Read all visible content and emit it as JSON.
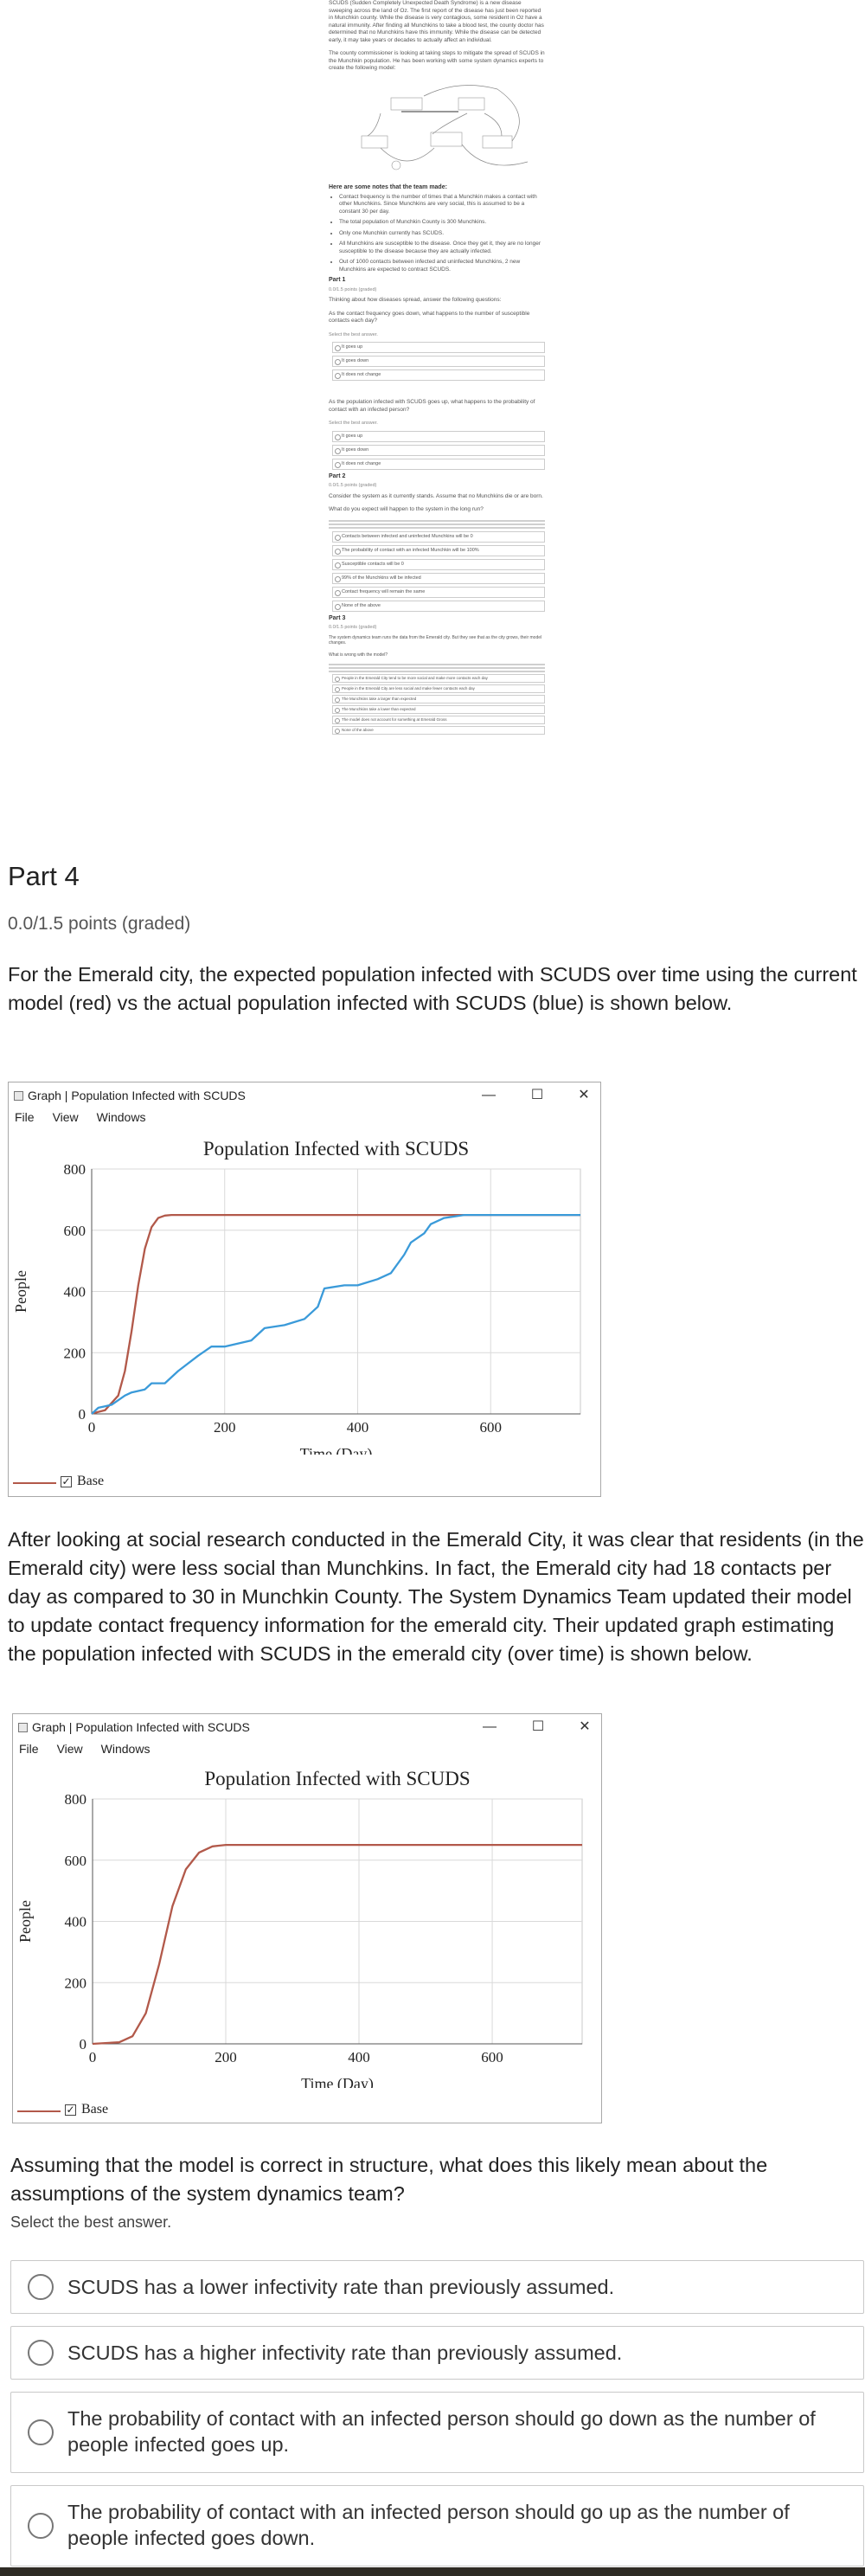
{
  "thumbnail": {
    "intro": "SCUDS (Sudden Completely Unexpected Death Syndrome) is a new disease sweeping across the land of Oz. The first report of the disease has just been reported in Munchkin county. While the disease is very contagious, some resident in Oz have a natural immunity. After finding all Munchkins to take a blood test, the county doctor has determined that no Munchkins have this immunity. While the disease can be detected early, it may take years or decades to actually affect an individual.",
    "intro2": "The county commissioner is looking at taking steps to mitigate the spread of SCUDS in the Munchkin population. He has been working with some system dynamics experts to create the following model:",
    "notes_title": "Here are some notes that the team made:",
    "notes": [
      "Contact frequency is the number of times that a Munchkin makes a contact with other Munchkins. Since Munchkins are very social, this is assumed to be a constant 30 per day.",
      "The total population of Munchkin County is 300 Munchkins.",
      "Only one Munchkin currently has SCUDS.",
      "All Munchkins are susceptible to the disease. Once they get it, they are no longer susceptible to the disease because they are actually infected.",
      "Out of 1000 contacts between infected and uninfected Munchkins, 2 new Munchkins are expected to contract SCUDS."
    ],
    "part1_title": "Part 1",
    "part1_points": "0.0/1.5 points (graded)",
    "part1_lead": "Thinking about how diseases spread, answer the following questions:",
    "q1": "As the contact frequency goes down, what happens to the number of susceptible contacts each day?",
    "q1_instr": "Select the best answer.",
    "q1_opts": [
      "It goes up",
      "It goes down",
      "It does not change"
    ],
    "q2": "As the population infected with SCUDS goes up, what happens to the probability of contact with an infected person?",
    "q2_instr": "Select the best answer.",
    "q2_opts": [
      "It goes up",
      "It goes down",
      "It does not change"
    ],
    "part2_title": "Part 2",
    "part2_points": "0.0/1.5 points (graded)",
    "part2_lead": "Consider the system as it currently stands. Assume that no Munchkins die or are born.",
    "q3": "What do you expect will happen to the system in the long run?",
    "q3_opts": [
      "Contacts between infected and uninfected Munchkins will be 0",
      "The probability of contact with an infected Munchkin will be 100%",
      "Susceptible contacts will be 0",
      "99% of the Munchkins will be infected",
      "Contact frequency will remain the same",
      "None of the above"
    ],
    "part3_title": "Part 3",
    "part3_points": "0.0/1.5 points (graded)",
    "part3_lead": "The system dynamics team runs the data from the Emerald city. But they see that as the city grows, their model changes.",
    "q4": "What is wrong with the model?",
    "q5_opts": [
      "People in the Emerald City tend to be more social and make more contacts each day",
      "People in the Emerald City are less social and make fewer contacts each day",
      "The Munchkins take a larger than expected",
      "The Munchkins take a lower than expected",
      "The model does not account for something at Emerald Gross",
      "None of the above"
    ]
  },
  "part4": {
    "title": "Part 4",
    "points": "0.0/1.5 points (graded)",
    "intro": "For the Emerald city, the expected population infected with SCUDS over time using the current model (red) vs the actual population infected with SCUDS (blue) is shown below.",
    "middle_text": "After looking at social research conducted in the Emerald City, it was clear that residents (in the Emerald city) were less social than Munchkins. In fact, the Emerald city had 18 contacts per day as compared to 30 in Munchkin County. The System Dynamics Team updated their model to update contact frequency information for the emerald city. Their updated graph estimating the population infected with SCUDS in the emerald city (over time) is shown below.",
    "question": "Assuming that the model is correct in structure, what does this likely mean about the assumptions of the system dynamics team?",
    "instruction": "Select the best answer.",
    "options": [
      "SCUDS has a lower infectivity rate than previously assumed.",
      "SCUDS has a higher infectivity rate than previously assumed.",
      "The probability of contact with an infected person should go down as the number of people infected goes up.",
      "The probability of contact with an infected person should go up as the number of people infected goes down."
    ]
  },
  "graph_window": {
    "title": "Graph | Population Infected with SCUDS",
    "menu": [
      "File",
      "View",
      "Windows"
    ],
    "minimize_glyph": "—",
    "maximize_glyph": "☐",
    "close_glyph": "✕",
    "legend_check": "✓"
  },
  "colors": {
    "model": "#b2594a",
    "actual": "#3a9ad9",
    "grid": "#d9d9d9"
  },
  "chart_data": [
    {
      "type": "line",
      "title": "Population Infected with SCUDS",
      "xlabel": "Time (Day)",
      "ylabel": "People",
      "xlim": [
        0,
        735
      ],
      "ylim": [
        0,
        800
      ],
      "xticks": [
        0,
        200,
        400,
        600
      ],
      "yticks": [
        0,
        200,
        400,
        600,
        800
      ],
      "grid": true,
      "legend": "bottom-left",
      "series": [
        {
          "name": "Base",
          "color": "#b2594a",
          "x": [
            0,
            20,
            40,
            50,
            60,
            70,
            80,
            90,
            100,
            110,
            120,
            140,
            200,
            735
          ],
          "y": [
            1,
            12,
            60,
            140,
            270,
            420,
            540,
            610,
            640,
            648,
            650,
            650,
            650,
            650
          ]
        },
        {
          "name": "",
          "color": "#3a9ad9",
          "x": [
            0,
            10,
            20,
            30,
            50,
            60,
            80,
            90,
            110,
            130,
            160,
            180,
            200,
            240,
            260,
            290,
            320,
            340,
            350,
            380,
            400,
            430,
            450,
            470,
            480,
            500,
            510,
            530,
            560,
            600,
            640,
            700,
            735
          ],
          "y": [
            0,
            20,
            25,
            30,
            60,
            70,
            80,
            100,
            100,
            140,
            190,
            220,
            220,
            240,
            280,
            290,
            310,
            350,
            410,
            420,
            420,
            440,
            460,
            520,
            560,
            590,
            620,
            640,
            650,
            650,
            650,
            650,
            650
          ]
        }
      ]
    },
    {
      "type": "line",
      "title": "Population Infected with SCUDS",
      "xlabel": "Time (Day)",
      "ylabel": "People",
      "xlim": [
        0,
        735
      ],
      "ylim": [
        0,
        800
      ],
      "xticks": [
        0,
        200,
        400,
        600
      ],
      "yticks": [
        0,
        200,
        400,
        600,
        800
      ],
      "grid": true,
      "legend": "bottom-left",
      "series": [
        {
          "name": "Base",
          "color": "#b2594a",
          "x": [
            0,
            40,
            60,
            80,
            100,
            120,
            140,
            160,
            180,
            200,
            220,
            735
          ],
          "y": [
            0,
            5,
            25,
            100,
            260,
            450,
            570,
            625,
            645,
            650,
            650,
            650
          ]
        }
      ]
    }
  ]
}
